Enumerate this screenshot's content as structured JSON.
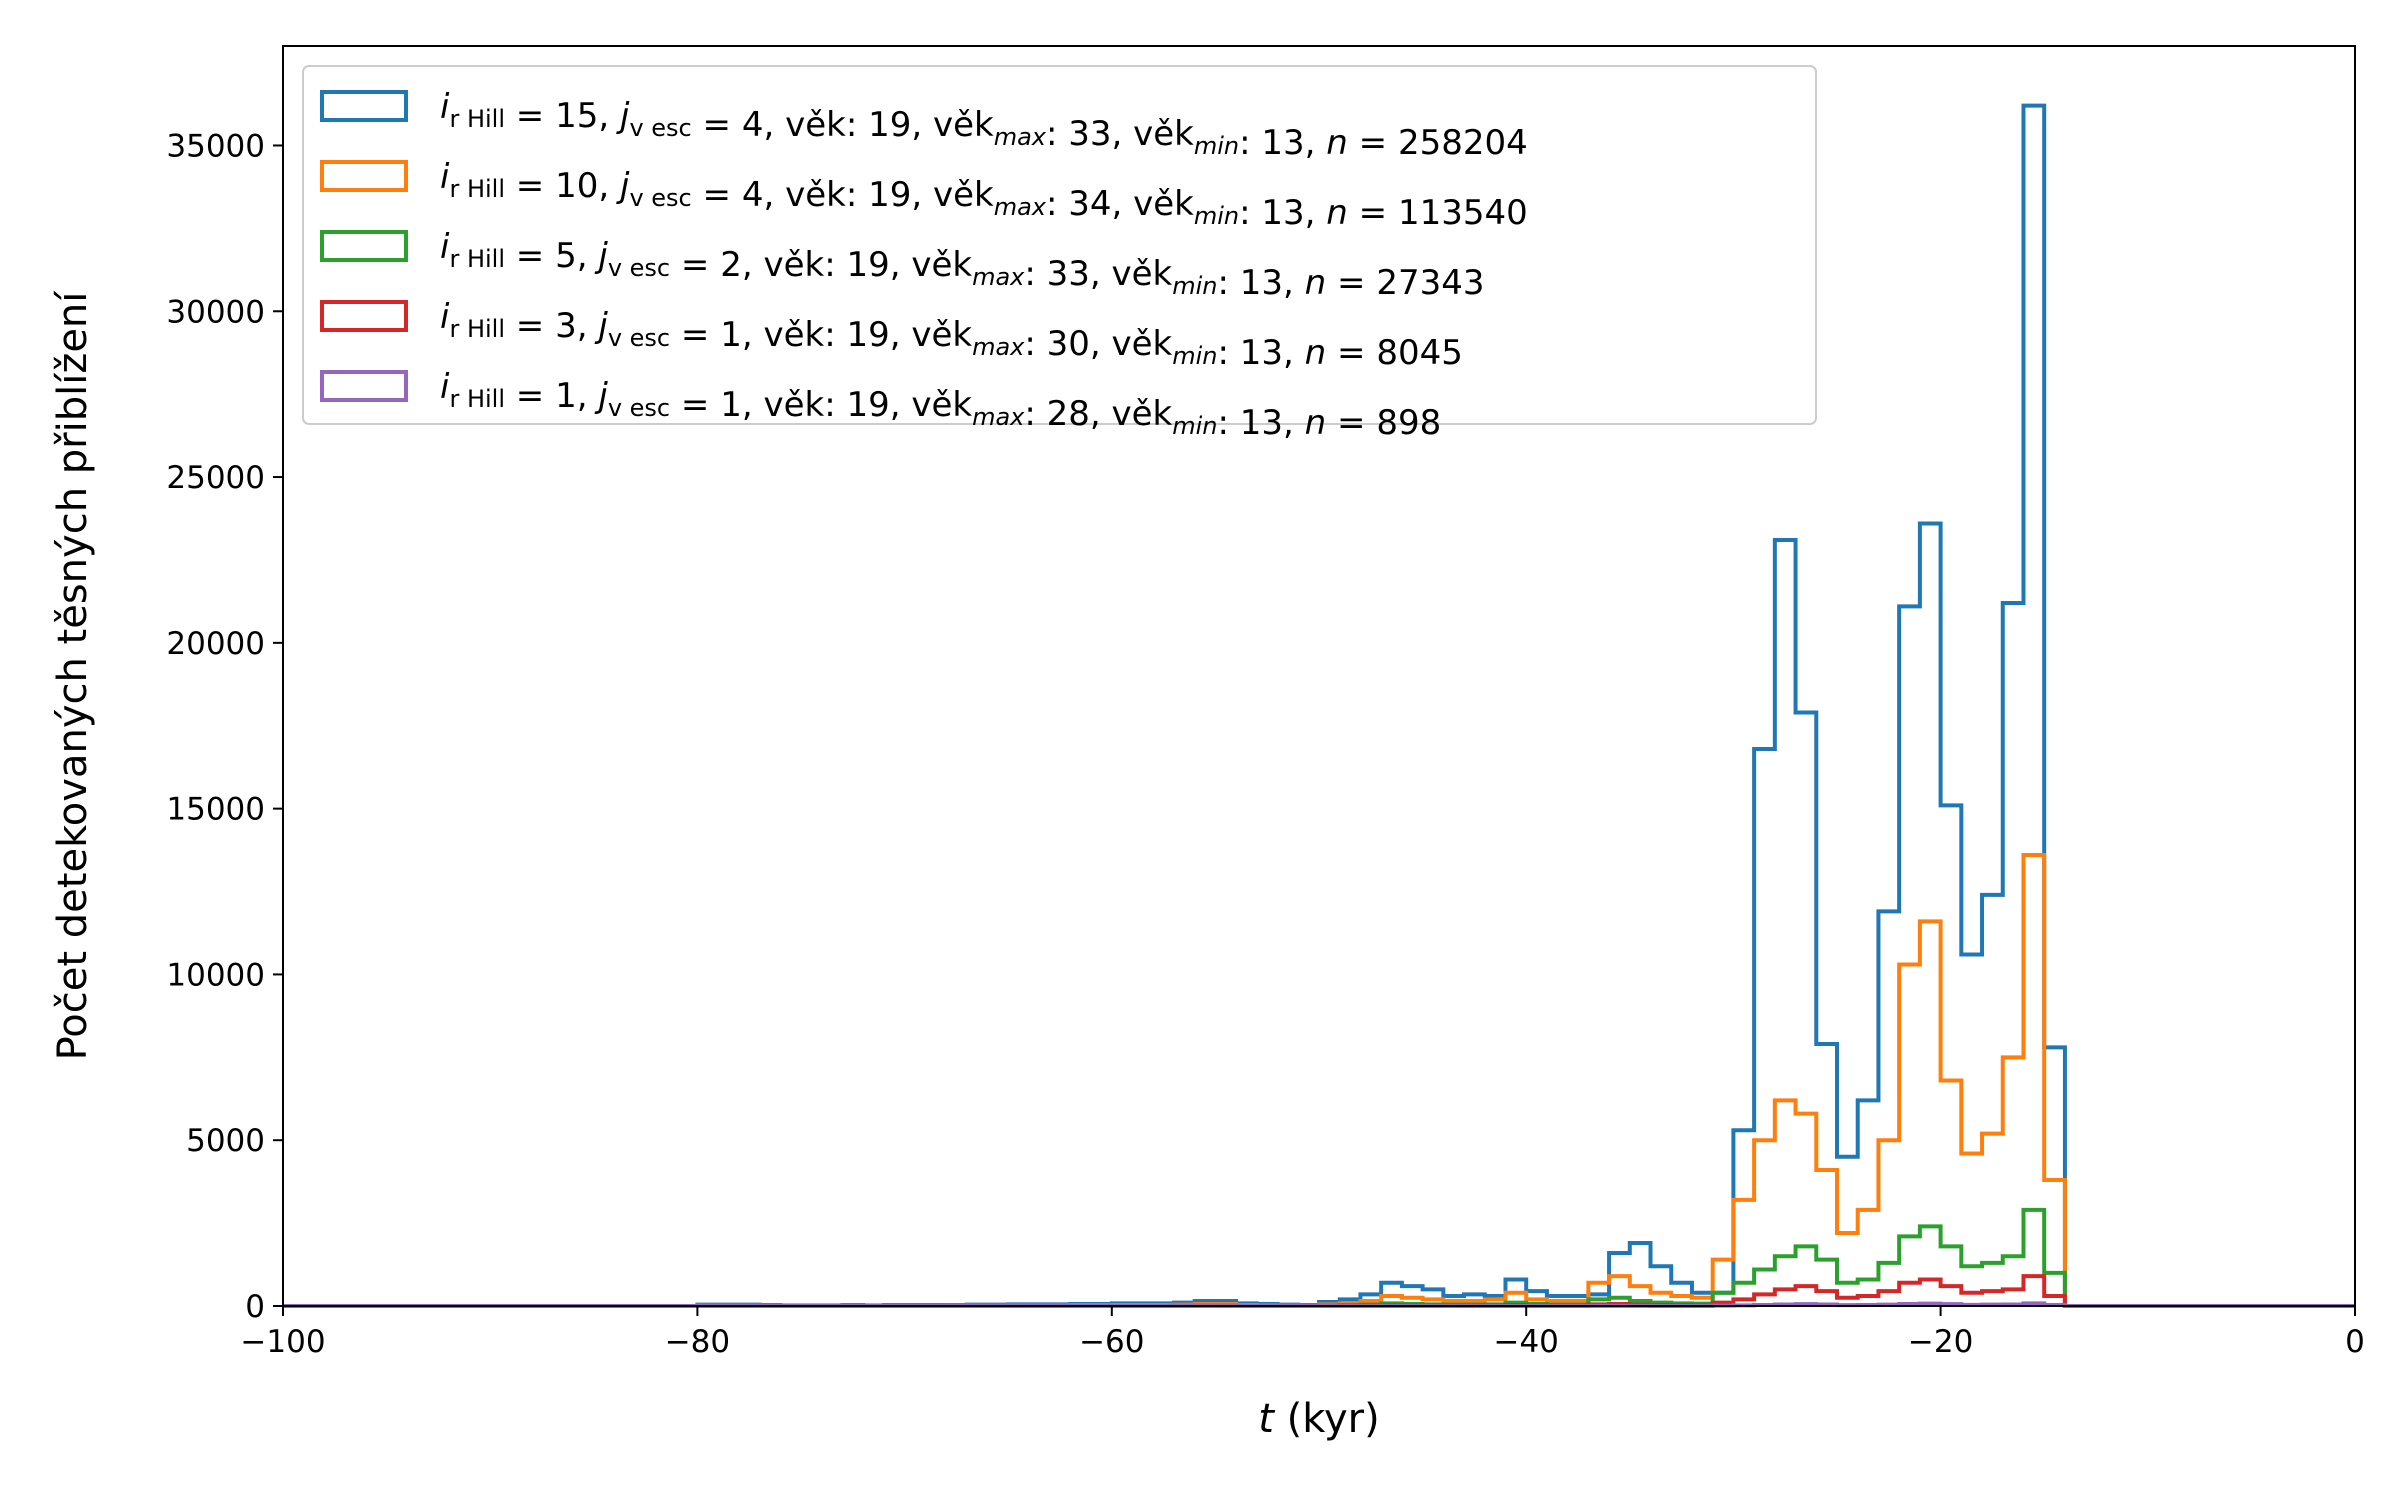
{
  "chart_data": {
    "type": "step-histogram",
    "title": "",
    "xlabel_var": "t",
    "xlabel_unit": " (kyr)",
    "ylabel": "Počet detekovaných těsných přiblížení",
    "xlim": [
      -100,
      0
    ],
    "ylim": [
      0,
      38000
    ],
    "xticks": [
      -100,
      -80,
      -60,
      -40,
      -20,
      0
    ],
    "yticks": [
      0,
      5000,
      10000,
      15000,
      20000,
      25000,
      30000,
      35000
    ],
    "grid": false,
    "legend_position": "upper-left",
    "bin_width": 1,
    "bins_start": -100,
    "series": [
      {
        "name": "i_rHill = 15, j_vesc = 4, věk: 19, věk_max: 33, věk_min: 13, n = 258204",
        "label": {
          "i_sub": "r Hill",
          "i_val": " = 15, ",
          "j_sub": "v esc",
          "j_val": " = 4, věk:  19, věk",
          "max_sub": "max",
          "max_val": ":  33, věk",
          "min_sub": "min",
          "min_val": ": 13, ",
          "n_val": " = 258204"
        },
        "color": "#1f77b4",
        "values": [
          0,
          0,
          0,
          0,
          0,
          0,
          0,
          0,
          0,
          0,
          0,
          0,
          0,
          0,
          0,
          0,
          0,
          0,
          0,
          0,
          40,
          40,
          40,
          30,
          20,
          20,
          20,
          30,
          20,
          30,
          30,
          30,
          30,
          40,
          40,
          50,
          50,
          50,
          60,
          60,
          80,
          80,
          80,
          100,
          150,
          150,
          80,
          60,
          40,
          30,
          120,
          200,
          350,
          700,
          600,
          500,
          300,
          350,
          300,
          800,
          450,
          300,
          300,
          350,
          1600,
          1900,
          1200,
          700,
          400,
          400,
          5300,
          16800,
          23100,
          17900,
          7900,
          4500,
          6200,
          11900,
          21100,
          23600,
          15100,
          10600,
          12400,
          21200,
          36200,
          7800,
          0,
          0,
          0,
          0,
          0,
          0,
          0,
          0,
          0,
          0,
          0,
          0,
          0,
          0
        ]
      },
      {
        "name": "i_rHill = 10, j_vesc = 4, věk: 19, věk_max: 34, věk_min: 13, n = 113540",
        "label": {
          "i_sub": "r Hill",
          "i_val": " = 10, ",
          "j_sub": "v esc",
          "j_val": " = 4, věk:  19, věk",
          "max_sub": "max",
          "max_val": ":  34, věk",
          "min_sub": "min",
          "min_val": ": 13, ",
          "n_val": " = 113540"
        },
        "color": "#ff7f0e",
        "values": [
          0,
          0,
          0,
          0,
          0,
          0,
          0,
          0,
          0,
          0,
          0,
          0,
          0,
          0,
          0,
          0,
          0,
          0,
          0,
          0,
          15,
          15,
          15,
          10,
          10,
          10,
          10,
          10,
          10,
          10,
          10,
          10,
          15,
          15,
          15,
          20,
          20,
          20,
          25,
          25,
          30,
          30,
          30,
          40,
          60,
          60,
          30,
          20,
          15,
          10,
          50,
          80,
          150,
          300,
          250,
          200,
          150,
          150,
          200,
          400,
          200,
          150,
          150,
          700,
          900,
          600,
          400,
          300,
          250,
          1400,
          3200,
          5000,
          6200,
          5800,
          4100,
          2200,
          2900,
          5000,
          10300,
          11600,
          6800,
          4600,
          5200,
          7500,
          13600,
          3800,
          0,
          0,
          0,
          0,
          0,
          0,
          0,
          0,
          0,
          0,
          0,
          0,
          0,
          0
        ]
      },
      {
        "name": "i_rHill = 5, j_vesc = 2, věk: 19, věk_max: 33, věk_min: 13, n = 27343",
        "label": {
          "i_sub": "r Hill",
          "i_val": " =  5, ",
          "j_sub": "v esc",
          "j_val": " = 2, věk:  19, věk",
          "max_sub": "max",
          "max_val": ":  33, věk",
          "min_sub": "min",
          "min_val": ": 13, ",
          "n_val": " = 27343"
        },
        "color": "#2ca02c",
        "values": [
          0,
          0,
          0,
          0,
          0,
          0,
          0,
          0,
          0,
          0,
          0,
          0,
          0,
          0,
          0,
          0,
          0,
          0,
          0,
          0,
          3,
          3,
          3,
          3,
          3,
          3,
          3,
          3,
          3,
          3,
          3,
          3,
          3,
          3,
          3,
          5,
          5,
          5,
          5,
          5,
          8,
          8,
          8,
          10,
          15,
          15,
          8,
          5,
          3,
          3,
          15,
          25,
          40,
          80,
          60,
          50,
          40,
          40,
          50,
          100,
          60,
          40,
          40,
          200,
          250,
          150,
          100,
          80,
          70,
          400,
          700,
          1100,
          1500,
          1800,
          1400,
          700,
          800,
          1300,
          2100,
          2400,
          1800,
          1200,
          1300,
          1500,
          2900,
          1000,
          0,
          0,
          0,
          0,
          0,
          0,
          0,
          0,
          0,
          0,
          0,
          0,
          0,
          0
        ]
      },
      {
        "name": "i_rHill = 3, j_vesc = 1, věk: 19, věk_max: 30, věk_min: 13, n = 8045",
        "label": {
          "i_sub": "r Hill",
          "i_val": " =  3, ",
          "j_sub": "v esc",
          "j_val": " = 1, věk:  19, věk",
          "max_sub": "max",
          "max_val": ":  30, věk",
          "min_sub": "min",
          "min_val": ": 13, ",
          "n_val": " = 8045"
        },
        "color": "#d62728",
        "values": [
          0,
          0,
          0,
          0,
          0,
          0,
          0,
          0,
          0,
          0,
          0,
          0,
          0,
          0,
          0,
          0,
          0,
          0,
          0,
          0,
          0,
          0,
          0,
          0,
          0,
          0,
          0,
          0,
          0,
          0,
          0,
          0,
          0,
          0,
          0,
          0,
          0,
          0,
          0,
          0,
          0,
          0,
          0,
          0,
          0,
          0,
          0,
          0,
          0,
          0,
          5,
          8,
          10,
          20,
          15,
          12,
          10,
          10,
          15,
          30,
          15,
          10,
          10,
          50,
          60,
          40,
          30,
          25,
          20,
          100,
          200,
          350,
          500,
          600,
          450,
          250,
          300,
          450,
          700,
          800,
          600,
          400,
          450,
          500,
          900,
          300,
          0,
          0,
          0,
          0,
          0,
          0,
          0,
          0,
          0,
          0,
          0,
          0,
          0,
          0
        ]
      },
      {
        "name": "i_rHill = 1, j_vesc = 1, věk: 19, věk_max: 28, věk_min: 13, n = 898",
        "label": {
          "i_sub": "r Hill",
          "i_val": " =  1, ",
          "j_sub": "v esc",
          "j_val": " = 1, věk:  19, věk",
          "max_sub": "max",
          "max_val": ":  28, věk",
          "min_sub": "min",
          "min_val": ": 13, ",
          "n_val": " = 898"
        },
        "color": "#9467bd",
        "values": [
          0,
          0,
          0,
          0,
          0,
          0,
          0,
          0,
          0,
          0,
          0,
          0,
          0,
          0,
          0,
          0,
          0,
          0,
          0,
          0,
          0,
          0,
          0,
          0,
          0,
          0,
          0,
          0,
          0,
          0,
          0,
          0,
          0,
          0,
          0,
          0,
          0,
          0,
          0,
          0,
          0,
          0,
          0,
          0,
          0,
          0,
          0,
          0,
          0,
          0,
          0,
          0,
          0,
          0,
          0,
          0,
          0,
          0,
          0,
          0,
          0,
          0,
          0,
          5,
          5,
          5,
          0,
          0,
          0,
          10,
          20,
          30,
          45,
          55,
          45,
          25,
          30,
          40,
          60,
          70,
          55,
          35,
          40,
          45,
          80,
          30,
          0,
          0,
          0,
          0,
          0,
          0,
          0,
          0,
          0,
          0,
          0,
          0,
          0,
          0
        ]
      }
    ]
  }
}
